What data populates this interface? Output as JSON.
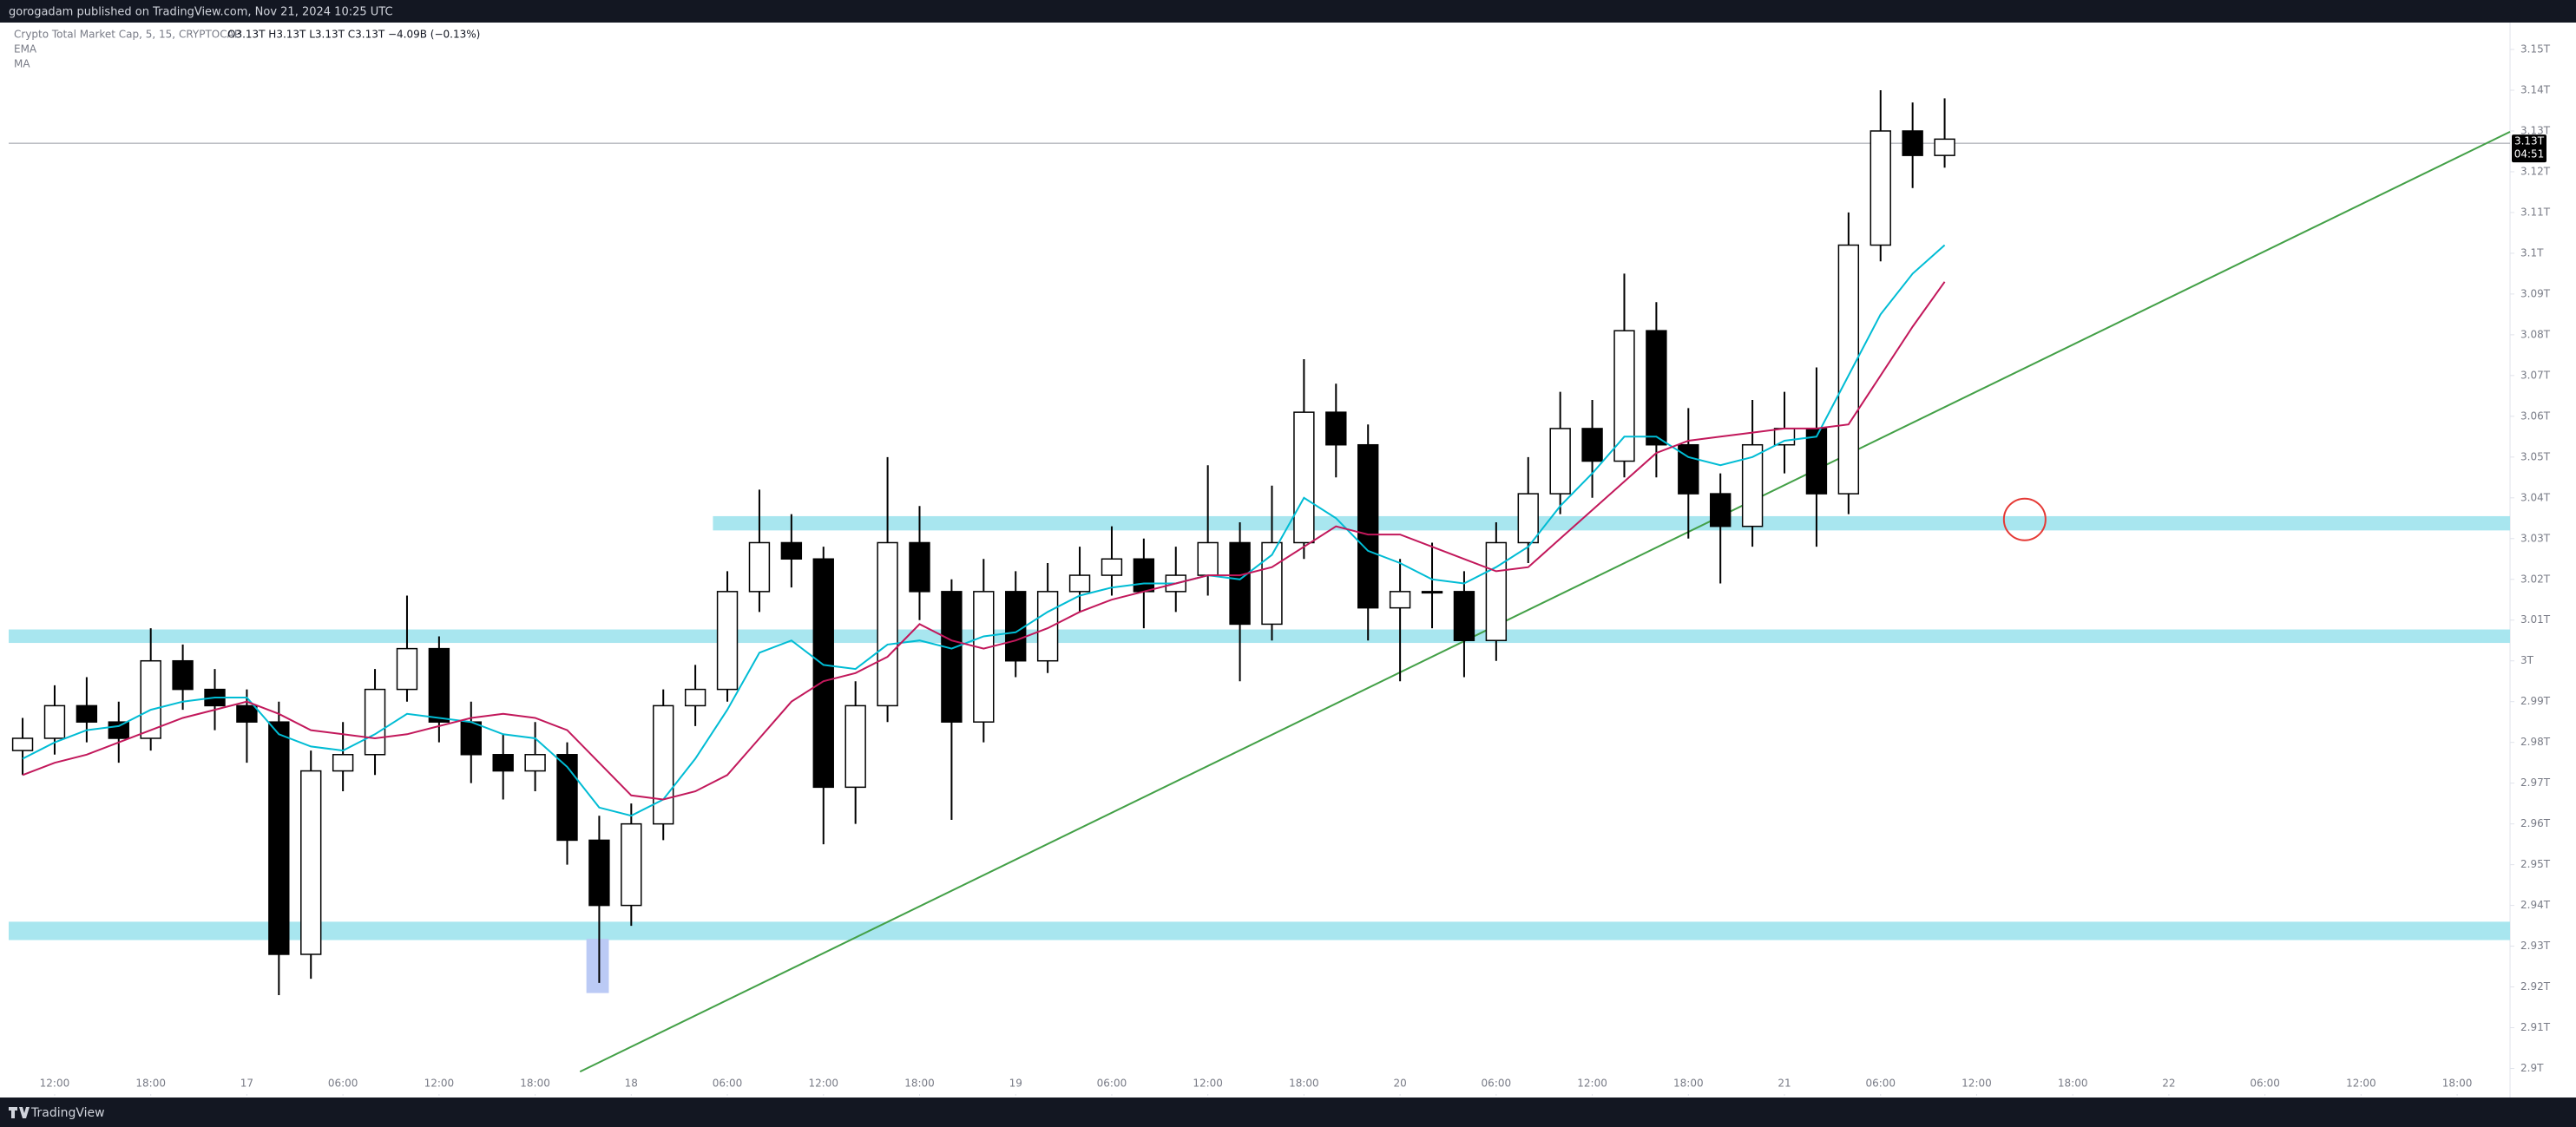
{
  "header": {
    "published": "gorogadam published on TradingView.com, Nov 21, 2024 10:25 UTC",
    "symbol": "Crypto Total Market Cap, 5, 15, CRYPTOCAP",
    "ohlc_text": "O3.13T H3.13T L3.13T C3.13T −4.09B (−0.13%)"
  },
  "footer": {
    "brand": "TradingView"
  },
  "chart_data": {
    "type": "candlestick",
    "x": [
      10,
      12,
      14,
      16,
      18,
      20,
      22,
      24,
      26,
      28,
      30,
      32,
      34,
      36,
      38,
      40,
      42,
      44,
      46,
      48,
      50,
      52,
      54,
      56,
      58,
      60,
      62,
      64,
      66,
      68,
      70,
      72,
      74,
      76,
      78,
      80,
      82,
      84,
      86,
      88,
      90,
      92,
      94,
      96,
      98,
      100,
      102,
      104,
      106,
      108,
      110,
      112,
      114,
      116,
      118,
      120,
      122,
      124,
      126,
      128,
      130
    ],
    "open": [
      2.978,
      2.981,
      2.989,
      2.985,
      2.981,
      3.0,
      2.993,
      2.989,
      2.985,
      2.928,
      2.973,
      2.977,
      2.993,
      3.003,
      2.985,
      2.977,
      2.973,
      2.977,
      2.956,
      2.94,
      2.96,
      2.989,
      2.993,
      3.017,
      3.029,
      3.025,
      2.969,
      2.989,
      3.029,
      3.017,
      2.985,
      3.017,
      3.0,
      3.017,
      3.021,
      3.025,
      3.017,
      3.021,
      3.029,
      3.009,
      3.029,
      3.061,
      3.053,
      3.013,
      3.017,
      3.017,
      3.005,
      3.029,
      3.041,
      3.057,
      3.049,
      3.081,
      3.053,
      3.041,
      3.033,
      3.053,
      3.057,
      3.041,
      3.102,
      3.13,
      3.124
    ],
    "high": [
      2.986,
      2.994,
      2.996,
      2.99,
      3.008,
      3.004,
      2.998,
      2.993,
      2.99,
      2.978,
      2.985,
      2.998,
      3.016,
      3.006,
      2.99,
      2.982,
      2.985,
      2.98,
      2.962,
      2.965,
      2.993,
      2.999,
      3.022,
      3.042,
      3.036,
      3.028,
      2.995,
      3.05,
      3.038,
      3.02,
      3.025,
      3.022,
      3.024,
      3.028,
      3.033,
      3.03,
      3.028,
      3.048,
      3.034,
      3.043,
      3.074,
      3.068,
      3.058,
      3.025,
      3.029,
      3.022,
      3.034,
      3.05,
      3.066,
      3.064,
      3.095,
      3.088,
      3.062,
      3.046,
      3.064,
      3.066,
      3.072,
      3.11,
      3.14,
      3.137,
      3.138
    ],
    "low": [
      2.972,
      2.977,
      2.98,
      2.975,
      2.978,
      2.988,
      2.983,
      2.975,
      2.918,
      2.922,
      2.968,
      2.972,
      2.99,
      2.98,
      2.97,
      2.966,
      2.968,
      2.95,
      2.921,
      2.935,
      2.956,
      2.984,
      2.99,
      3.012,
      3.018,
      2.955,
      2.96,
      2.985,
      3.01,
      2.961,
      2.98,
      2.996,
      2.997,
      3.012,
      3.016,
      3.008,
      3.012,
      3.016,
      2.995,
      3.005,
      3.025,
      3.045,
      3.005,
      2.995,
      3.008,
      2.996,
      3.0,
      3.024,
      3.036,
      3.04,
      3.045,
      3.045,
      3.03,
      3.019,
      3.028,
      3.046,
      3.028,
      3.036,
      3.098,
      3.116,
      3.121
    ],
    "close": [
      2.981,
      2.989,
      2.985,
      2.981,
      3.0,
      2.993,
      2.989,
      2.985,
      2.928,
      2.973,
      2.977,
      2.993,
      3.003,
      2.985,
      2.977,
      2.973,
      2.977,
      2.956,
      2.94,
      2.96,
      2.989,
      2.993,
      3.017,
      3.029,
      3.025,
      2.969,
      2.989,
      3.029,
      3.017,
      2.985,
      3.017,
      3.0,
      3.017,
      3.021,
      3.025,
      3.017,
      3.021,
      3.029,
      3.009,
      3.029,
      3.061,
      3.053,
      3.013,
      3.017,
      3.017,
      3.005,
      3.029,
      3.041,
      3.057,
      3.049,
      3.081,
      3.053,
      3.041,
      3.033,
      3.053,
      3.057,
      3.041,
      3.102,
      3.13,
      3.124,
      3.128
    ],
    "series": [
      {
        "name": "EMA",
        "color": "#00bcd4",
        "values": [
          2.976,
          2.98,
          2.983,
          2.984,
          2.988,
          2.99,
          2.991,
          2.991,
          2.982,
          2.979,
          2.978,
          2.982,
          2.987,
          2.986,
          2.985,
          2.982,
          2.981,
          2.974,
          2.964,
          2.962,
          2.966,
          2.976,
          2.988,
          3.002,
          3.005,
          2.999,
          2.998,
          3.004,
          3.005,
          3.003,
          3.006,
          3.007,
          3.012,
          3.016,
          3.018,
          3.019,
          3.019,
          3.021,
          3.02,
          3.026,
          3.04,
          3.035,
          3.027,
          3.024,
          3.02,
          3.019,
          3.023,
          3.028,
          3.038,
          3.046,
          3.055,
          3.055,
          3.05,
          3.048,
          3.05,
          3.054,
          3.055,
          3.07,
          3.085,
          3.095,
          3.102
        ]
      },
      {
        "name": "MA",
        "color": "#c2185b",
        "values": [
          2.972,
          2.975,
          2.977,
          2.98,
          2.983,
          2.986,
          2.988,
          2.99,
          2.987,
          2.983,
          2.982,
          2.981,
          2.982,
          2.984,
          2.986,
          2.987,
          2.986,
          2.983,
          2.975,
          2.967,
          2.966,
          2.968,
          2.972,
          2.981,
          2.99,
          2.995,
          2.997,
          3.001,
          3.009,
          3.005,
          3.003,
          3.005,
          3.008,
          3.012,
          3.015,
          3.017,
          3.019,
          3.021,
          3.021,
          3.023,
          3.028,
          3.033,
          3.031,
          3.031,
          3.028,
          3.025,
          3.022,
          3.023,
          3.03,
          3.037,
          3.044,
          3.051,
          3.054,
          3.055,
          3.056,
          3.057,
          3.057,
          3.058,
          3.07,
          3.082,
          3.093
        ]
      }
    ],
    "up_color": "#ffffff",
    "down_color": "#000000",
    "xlim": [
      9.13,
      165.3
    ],
    "ylim": [
      2.8933,
      3.1566
    ],
    "xticks": [
      {
        "value": 12,
        "label": "12:00"
      },
      {
        "value": 18,
        "label": "18:00"
      },
      {
        "value": 24,
        "label": "17"
      },
      {
        "value": 30,
        "label": "06:00"
      },
      {
        "value": 36,
        "label": "12:00"
      },
      {
        "value": 42,
        "label": "18:00"
      },
      {
        "value": 48,
        "label": "18"
      },
      {
        "value": 54,
        "label": "06:00"
      },
      {
        "value": 60,
        "label": "12:00"
      },
      {
        "value": 66,
        "label": "18:00"
      },
      {
        "value": 72,
        "label": "19"
      },
      {
        "value": 78,
        "label": "06:00"
      },
      {
        "value": 84,
        "label": "12:00"
      },
      {
        "value": 90,
        "label": "18:00"
      },
      {
        "value": 96,
        "label": "20"
      },
      {
        "value": 102,
        "label": "06:00"
      },
      {
        "value": 108,
        "label": "12:00"
      },
      {
        "value": 114,
        "label": "18:00"
      },
      {
        "value": 120,
        "label": "21"
      },
      {
        "value": 126,
        "label": "06:00"
      },
      {
        "value": 132,
        "label": "12:00"
      },
      {
        "value": 138,
        "label": "18:00"
      },
      {
        "value": 144,
        "label": "22"
      },
      {
        "value": 150,
        "label": "06:00"
      },
      {
        "value": 156,
        "label": "12:00"
      },
      {
        "value": 162,
        "label": "18:00"
      }
    ],
    "yticks": [
      {
        "value": 2.9,
        "label": "2.9T"
      },
      {
        "value": 2.91,
        "label": "2.91T"
      },
      {
        "value": 2.92,
        "label": "2.92T"
      },
      {
        "value": 2.93,
        "label": "2.93T"
      },
      {
        "value": 2.94,
        "label": "2.94T"
      },
      {
        "value": 2.95,
        "label": "2.95T"
      },
      {
        "value": 2.96,
        "label": "2.96T"
      },
      {
        "value": 2.97,
        "label": "2.97T"
      },
      {
        "value": 2.98,
        "label": "2.98T"
      },
      {
        "value": 2.99,
        "label": "2.99T"
      },
      {
        "value": 3.0,
        "label": "3T"
      },
      {
        "value": 3.01,
        "label": "3.01T"
      },
      {
        "value": 3.02,
        "label": "3.02T"
      },
      {
        "value": 3.03,
        "label": "3.03T"
      },
      {
        "value": 3.04,
        "label": "3.04T"
      },
      {
        "value": 3.05,
        "label": "3.05T"
      },
      {
        "value": 3.06,
        "label": "3.06T"
      },
      {
        "value": 3.07,
        "label": "3.07T"
      },
      {
        "value": 3.08,
        "label": "3.08T"
      },
      {
        "value": 3.09,
        "label": "3.09T"
      },
      {
        "value": 3.1,
        "label": "3.1T"
      },
      {
        "value": 3.11,
        "label": "3.11T"
      },
      {
        "value": 3.12,
        "label": "3.12T"
      },
      {
        "value": 3.13,
        "label": "3.13T"
      },
      {
        "value": 3.14,
        "label": "3.14T"
      },
      {
        "value": 3.15,
        "label": "3.15T"
      }
    ],
    "grid": false,
    "zones": [
      {
        "range": [
          3.032,
          3.0355
        ],
        "from": 53.1,
        "color": "#a8e6ef"
      },
      {
        "range": [
          3.0044,
          3.0077
        ],
        "color": "#a8e6ef"
      },
      {
        "range": [
          2.9315,
          2.936
        ],
        "color": "#a8e6ef"
      }
    ],
    "trendline": {
      "x": [
        44.8,
        165.3
      ],
      "y": [
        2.8992,
        3.1298
      ],
      "color": "#43a047"
    },
    "circle": {
      "x": 135,
      "y": 3.0347,
      "color": "#e53935"
    },
    "highlight": {
      "x": [
        45.2,
        46.6
      ],
      "y": [
        2.9185,
        2.9318
      ],
      "color": "#bbcaf5"
    },
    "last_price": {
      "value": 3.127,
      "label": "3.13T",
      "countdown": "04:51"
    }
  }
}
